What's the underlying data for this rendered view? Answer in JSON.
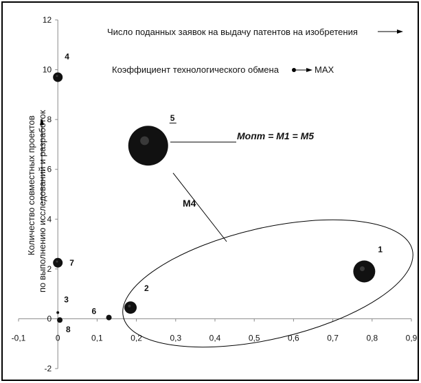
{
  "chart_data": {
    "type": "scatter",
    "title": "",
    "ylabel_line1": "Количество совместных проектов",
    "ylabel_line2": "по выполнению исследований и разработок",
    "xlim": [
      -0.1,
      0.9
    ],
    "ylim": [
      -2,
      12
    ],
    "x_ticks": [
      "-0,1",
      "0",
      "0,1",
      "0,2",
      "0,3",
      "0,4",
      "0,5",
      "0,6",
      "0,7",
      "0,8",
      "0,9"
    ],
    "y_ticks": [
      "-2",
      "0",
      "2",
      "4",
      "6",
      "8",
      "10",
      "12"
    ],
    "x_tick_values": [
      -0.1,
      0,
      0.1,
      0.2,
      0.3,
      0.4,
      0.5,
      0.6,
      0.7,
      0.8,
      0.9
    ],
    "y_tick_values": [
      -2,
      0,
      2,
      4,
      6,
      8,
      10,
      12
    ],
    "legend_x_axis": "Число поданных заявок на выдачу патентов на изобретения",
    "legend_coef": "Коэффициент технологического обмена",
    "legend_max": "MAX",
    "points": [
      {
        "label": "1",
        "x": 0.78,
        "y": 1.9,
        "size": 16
      },
      {
        "label": "2",
        "x": 0.185,
        "y": 0.45,
        "size": 9
      },
      {
        "label": "3",
        "x": 0.0,
        "y": 0.25,
        "size": 2
      },
      {
        "label": "4",
        "x": 0.0,
        "y": 9.7,
        "size": 7
      },
      {
        "label": "5",
        "x": 0.23,
        "y": 6.95,
        "size": 29
      },
      {
        "label": "6",
        "x": 0.13,
        "y": 0.05,
        "size": 4
      },
      {
        "label": "7",
        "x": 0.0,
        "y": 2.25,
        "size": 7
      },
      {
        "label": "8",
        "x": 0.005,
        "y": -0.05,
        "size": 4
      }
    ],
    "annotations": {
      "m4": "M4",
      "m_opt": "Мопт = М1 = М5"
    }
  }
}
